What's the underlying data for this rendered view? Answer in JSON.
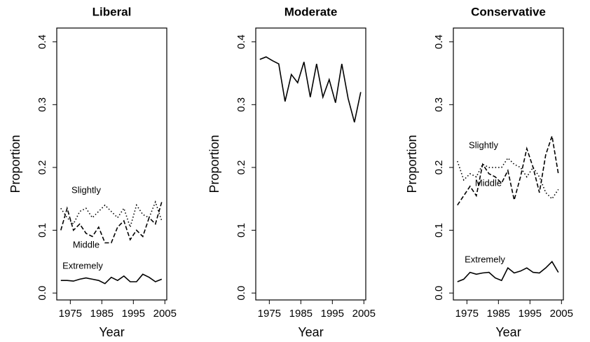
{
  "chart_data": [
    {
      "type": "line",
      "title": "Liberal",
      "x_label": "Year",
      "y_label": "Proportion",
      "x": [
        1972,
        1974,
        1976,
        1978,
        1980,
        1982,
        1984,
        1986,
        1988,
        1990,
        1992,
        1994,
        1996,
        1998,
        2000,
        2002,
        2004
      ],
      "series": [
        {
          "name": "Slightly",
          "color": "#000000",
          "line_style": "dotted",
          "values": [
            0.135,
            0.12,
            0.11,
            0.13,
            0.135,
            0.12,
            0.13,
            0.14,
            0.13,
            0.12,
            0.135,
            0.105,
            0.14,
            0.125,
            0.12,
            0.145,
            0.115
          ]
        },
        {
          "name": "Middle",
          "color": "#000000",
          "line_style": "dashed",
          "values": [
            0.1,
            0.135,
            0.1,
            0.11,
            0.095,
            0.09,
            0.105,
            0.08,
            0.08,
            0.105,
            0.115,
            0.085,
            0.1,
            0.09,
            0.12,
            0.11,
            0.145
          ]
        },
        {
          "name": "Extremely",
          "color": "#000000",
          "line_style": "solid",
          "values": [
            0.02,
            0.02,
            0.019,
            0.022,
            0.024,
            0.022,
            0.02,
            0.015,
            0.025,
            0.02,
            0.027,
            0.018,
            0.018,
            0.03,
            0.025,
            0.018,
            0.022
          ]
        }
      ],
      "xlim": [
        1970.7,
        2005.6
      ],
      "xticks": [
        1975,
        1985,
        1995,
        2005
      ],
      "ylim": [
        -0.011,
        0.422
      ],
      "yticks": [
        {
          "value": 0,
          "label": "0.0"
        },
        0.1,
        0.2,
        0.3,
        0.4
      ]
    },
    {
      "type": "line",
      "title": "Moderate",
      "x_label": "Year",
      "y_label": "Proportion",
      "x": [
        1972,
        1974,
        1976,
        1978,
        1980,
        1982,
        1984,
        1986,
        1988,
        1990,
        1992,
        1994,
        1996,
        1998,
        2000,
        2002,
        2004
      ],
      "series": [
        {
          "color": "#000000",
          "line_style": "solid",
          "values": [
            0.372,
            0.376,
            0.37,
            0.365,
            0.305,
            0.348,
            0.335,
            0.368,
            0.312,
            0.365,
            0.312,
            0.34,
            0.303,
            0.365,
            0.31,
            0.272,
            0.32
          ]
        }
      ],
      "xlim": [
        1970.7,
        2005.6
      ],
      "xticks": [
        1975,
        1985,
        1995,
        2005
      ],
      "ylim": [
        -0.011,
        0.422
      ],
      "yticks": [
        {
          "value": 0,
          "label": "0.0"
        },
        0.1,
        0.2,
        0.3,
        0.4
      ]
    },
    {
      "type": "line",
      "title": "Conservative",
      "x_label": "Year",
      "y_label": "Proportion",
      "x": [
        1972,
        1974,
        1976,
        1978,
        1980,
        1982,
        1984,
        1986,
        1988,
        1990,
        1992,
        1994,
        1996,
        1998,
        2000,
        2002,
        2004
      ],
      "series": [
        {
          "name": "Slightly",
          "color": "#000000",
          "line_style": "dotted",
          "values": [
            0.21,
            0.18,
            0.19,
            0.185,
            0.205,
            0.2,
            0.2,
            0.2,
            0.215,
            0.205,
            0.2,
            0.185,
            0.2,
            0.185,
            0.16,
            0.15,
            0.165
          ]
        },
        {
          "name": "Middle",
          "color": "#000000",
          "line_style": "dashed",
          "values": [
            0.14,
            0.155,
            0.17,
            0.155,
            0.205,
            0.19,
            0.185,
            0.175,
            0.195,
            0.148,
            0.185,
            0.23,
            0.2,
            0.16,
            0.22,
            0.25,
            0.19
          ]
        },
        {
          "name": "Extremely",
          "color": "#000000",
          "line_style": "solid",
          "values": [
            0.018,
            0.022,
            0.033,
            0.03,
            0.032,
            0.033,
            0.024,
            0.02,
            0.04,
            0.032,
            0.035,
            0.04,
            0.033,
            0.032,
            0.04,
            0.05,
            0.033
          ]
        }
      ],
      "xlim": [
        1970.7,
        2005.6
      ],
      "xticks": [
        1975,
        1985,
        1995,
        2005
      ],
      "ylim": [
        -0.011,
        0.422
      ],
      "yticks": [
        {
          "value": 0,
          "label": "0.0"
        },
        0.1,
        0.2,
        0.3,
        0.4
      ]
    }
  ]
}
